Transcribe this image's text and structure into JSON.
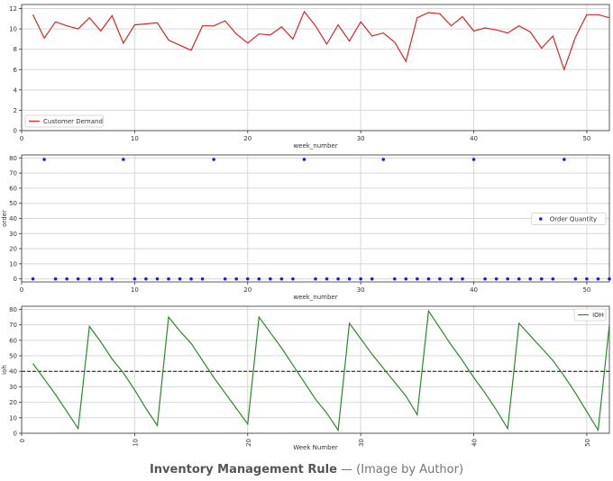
{
  "caption": {
    "bold": "Inventory Management Rule",
    "rest": " — (Image by Author)"
  },
  "colors": {
    "demand": "#d62728",
    "order": "#1f1fcf",
    "ioh": "#2a8a2a",
    "grid": "#d7d7d7",
    "axis": "#333333"
  },
  "chart_data": [
    {
      "type": "line",
      "xlabel": "week_number",
      "ylabel": "",
      "xlim": [
        0,
        52
      ],
      "ylim": [
        0,
        12.4
      ],
      "xticks": [
        0,
        10,
        20,
        30,
        40,
        50
      ],
      "xtick_labels": [
        "0",
        "10",
        "20",
        "30",
        "40",
        "50"
      ],
      "yticks": [
        0,
        2,
        4,
        6,
        8,
        10,
        12
      ],
      "legend": "bottom-left",
      "grid": true,
      "series": [
        {
          "name": "Customer Demand",
          "x": [
            1,
            2,
            3,
            4,
            5,
            6,
            7,
            8,
            9,
            10,
            11,
            12,
            13,
            14,
            15,
            16,
            17,
            18,
            19,
            20,
            21,
            22,
            23,
            24,
            25,
            26,
            27,
            28,
            29,
            30,
            31,
            32,
            33,
            34,
            35,
            36,
            37,
            38,
            39,
            40,
            41,
            42,
            43,
            44,
            45,
            46,
            47,
            48,
            49,
            50,
            51,
            52
          ],
          "values": [
            11.4,
            9.1,
            10.7,
            10.3,
            10.0,
            11.1,
            9.8,
            11.3,
            8.6,
            10.4,
            10.5,
            10.6,
            8.9,
            8.4,
            7.9,
            10.3,
            10.3,
            10.8,
            9.5,
            8.6,
            9.5,
            9.4,
            10.2,
            9.0,
            11.7,
            10.3,
            8.5,
            10.4,
            8.8,
            10.7,
            9.3,
            9.6,
            8.7,
            6.8,
            11.1,
            11.6,
            11.5,
            10.3,
            11.2,
            9.8,
            10.1,
            9.9,
            9.6,
            10.3,
            9.7,
            8.1,
            9.3,
            6.0,
            9.2,
            11.4,
            11.4,
            11.1
          ]
        }
      ]
    },
    {
      "type": "scatter",
      "xlabel": "week_number",
      "ylabel": "order",
      "xlim": [
        0,
        52
      ],
      "ylim": [
        -2,
        82
      ],
      "xticks": [
        0,
        10,
        20,
        30,
        40,
        50
      ],
      "xtick_labels": [
        "0",
        "10",
        "20",
        "30",
        "40",
        "50"
      ],
      "yticks": [
        0,
        10,
        20,
        30,
        40,
        50,
        60,
        70,
        80
      ],
      "legend": "right",
      "grid": true,
      "series": [
        {
          "name": "Order Quantity",
          "x": [
            1,
            2,
            3,
            4,
            5,
            6,
            7,
            8,
            9,
            10,
            11,
            12,
            13,
            14,
            15,
            16,
            17,
            18,
            19,
            20,
            21,
            22,
            23,
            24,
            25,
            26,
            27,
            28,
            29,
            30,
            31,
            32,
            33,
            34,
            35,
            36,
            37,
            38,
            39,
            40,
            41,
            42,
            43,
            44,
            45,
            46,
            47,
            48,
            49,
            50,
            51,
            52
          ],
          "values": [
            0,
            79,
            0,
            0,
            0,
            0,
            0,
            0,
            79,
            0,
            0,
            0,
            0,
            0,
            0,
            0,
            79,
            0,
            0,
            0,
            0,
            0,
            0,
            0,
            79,
            0,
            0,
            0,
            0,
            0,
            0,
            79,
            0,
            0,
            0,
            0,
            0,
            0,
            0,
            79,
            0,
            0,
            0,
            0,
            0,
            0,
            0,
            79,
            0,
            0,
            0,
            0
          ]
        }
      ]
    },
    {
      "type": "line",
      "xlabel": "Week Number",
      "ylabel": "ioh",
      "xlim": [
        0,
        52
      ],
      "ylim": [
        0,
        82
      ],
      "xticks": [
        0,
        10,
        20,
        30,
        40,
        50
      ],
      "xtick_labels": [
        "0",
        "10",
        "20",
        "30",
        "40",
        "50"
      ],
      "yticks": [
        0,
        10,
        20,
        30,
        40,
        50,
        60,
        70,
        80
      ],
      "legend": "top-right",
      "grid": true,
      "reference_line": {
        "y": 40,
        "style": "dashed"
      },
      "series": [
        {
          "name": "IOH",
          "x": [
            1,
            2,
            3,
            4,
            5,
            6,
            7,
            8,
            9,
            10,
            11,
            12,
            13,
            14,
            15,
            16,
            17,
            18,
            19,
            20,
            21,
            22,
            23,
            24,
            25,
            26,
            27,
            28,
            29,
            30,
            31,
            32,
            33,
            34,
            35,
            36,
            37,
            38,
            39,
            40,
            41,
            42,
            43,
            44,
            45,
            46,
            47,
            48,
            49,
            50,
            51,
            52
          ],
          "values": [
            45,
            35,
            25,
            14,
            3,
            69,
            59,
            48,
            39,
            28,
            16,
            5,
            75,
            66,
            58,
            47,
            36,
            26,
            16,
            6,
            75,
            65,
            55,
            44,
            33,
            22,
            13,
            2,
            71,
            61,
            51,
            42,
            33,
            24,
            12,
            79,
            68,
            57,
            47,
            36,
            26,
            15,
            3,
            71,
            63,
            55,
            47,
            37,
            26,
            14,
            2,
            70
          ]
        }
      ]
    }
  ]
}
